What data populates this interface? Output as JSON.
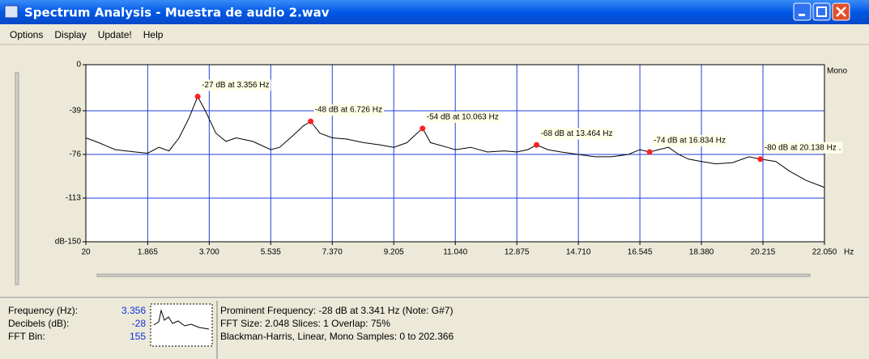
{
  "window": {
    "title": "Spectrum Analysis - Muestra de audio 2.wav"
  },
  "menu": [
    "Options",
    "Display",
    "Update!",
    "Help"
  ],
  "chart_data": {
    "type": "line",
    "channel": "Mono",
    "ylabel": "dB",
    "xlabel": "Hz",
    "color": "#000000",
    "grid": true,
    "grid_color": "#1f3fe0",
    "xlim": [
      20,
      22050
    ],
    "ylim": [
      -150,
      0
    ],
    "yticks": [
      0,
      -39,
      -76,
      -113,
      -150
    ],
    "xticks": [
      20,
      {
        "value": 1865,
        "label": "1.865"
      },
      {
        "value": 3700,
        "label": "3.700"
      },
      {
        "value": 5535,
        "label": "5.535"
      },
      {
        "value": 7370,
        "label": "7.370"
      },
      {
        "value": 9205,
        "label": "9.205"
      },
      {
        "value": 11040,
        "label": "11.040"
      },
      {
        "value": 12875,
        "label": "12.875"
      },
      {
        "value": 14710,
        "label": "14.710"
      },
      {
        "value": 16545,
        "label": "16.545"
      },
      {
        "value": 18380,
        "label": "18.380"
      },
      {
        "value": 20215,
        "label": "20.215"
      },
      {
        "value": 22050,
        "label": "22.050"
      }
    ],
    "x": [
      20,
      400,
      900,
      1500,
      1865,
      2200,
      2500,
      2800,
      3100,
      3356,
      3600,
      3900,
      4200,
      4500,
      5000,
      5535,
      5800,
      6200,
      6500,
      6726,
      7000,
      7370,
      7800,
      8300,
      8800,
      9205,
      9600,
      9900,
      10063,
      10300,
      10800,
      11040,
      11500,
      12000,
      12500,
      12875,
      13200,
      13464,
      13800,
      14200,
      14710,
      15200,
      15700,
      16200,
      16545,
      16834,
      17100,
      17400,
      17700,
      18000,
      18380,
      18800,
      19300,
      19800,
      20138,
      20600,
      21000,
      21500,
      22050
    ],
    "values": [
      -62,
      -66,
      -72,
      -74,
      -75,
      -70,
      -73,
      -62,
      -45,
      -27,
      -40,
      -58,
      -65,
      -62,
      -65,
      -72,
      -70,
      -60,
      -52,
      -48,
      -58,
      -62,
      -63,
      -66,
      -68,
      -70,
      -66,
      -58,
      -54,
      -66,
      -70,
      -72,
      -70,
      -74,
      -73,
      -74,
      -72,
      -68,
      -72,
      -74,
      -76,
      -78,
      -78,
      -76,
      -72,
      -74,
      -72,
      -70,
      -76,
      -80,
      -82,
      -84,
      -83,
      -78,
      -80,
      -82,
      -90,
      -98,
      -104
    ],
    "peak_color": "#ff2020",
    "annotations": [
      {
        "x": 3356,
        "y": -27,
        "label": "-27 dB at 3.356 Hz"
      },
      {
        "x": 6726,
        "y": -48,
        "label": "-48 dB at 6.726 Hz"
      },
      {
        "x": 10063,
        "y": -54,
        "label": "-54 dB at 10.063 Hz"
      },
      {
        "x": 13464,
        "y": -68,
        "label": "-68 dB at 13.464 Hz"
      },
      {
        "x": 16834,
        "y": -74,
        "label": "-74 dB at 16.834 Hz"
      },
      {
        "x": 20138,
        "y": -80,
        "label": "-80 dB at 20.138 Hz ."
      }
    ]
  },
  "status": {
    "labels": [
      "Frequency (Hz):",
      "Decibels (dB):",
      "FFT Bin:"
    ],
    "values": [
      "3.356",
      "-28",
      "155"
    ],
    "info": [
      "Prominent Frequency: -28 dB at 3.341 Hz (Note: G#7)",
      "FFT Size: 2.048  Slices: 1  Overlap: 75%",
      "Blackman-Harris, Linear, Mono  Samples: 0 to 202.366"
    ]
  }
}
